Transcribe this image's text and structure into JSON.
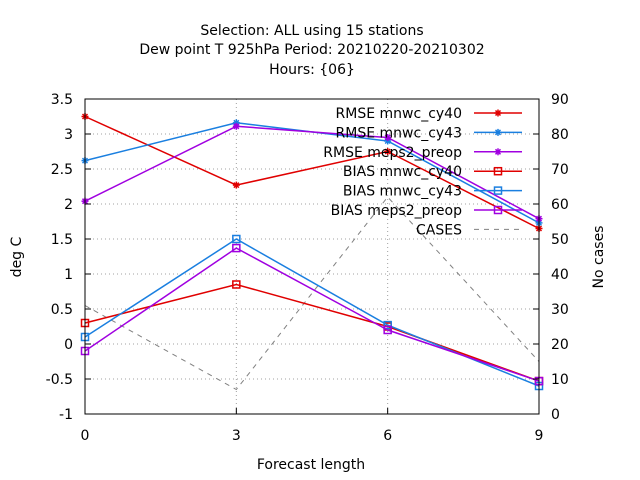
{
  "chart_data": {
    "type": "line",
    "title_lines": [
      "Selection: ALL using    15 stations",
      "Dew point T 925hPa   Period: 20210220-20210302",
      "Hours: {06}"
    ],
    "xlabel": "Forecast length",
    "ylabel": "deg C",
    "y2label": "No cases",
    "x": [
      0,
      3,
      6,
      9
    ],
    "xlim": [
      0,
      9
    ],
    "xticks": [
      "0",
      "3",
      "6",
      "9"
    ],
    "ylim": [
      -1,
      3.5
    ],
    "yticks": [
      "-1",
      "-0.5",
      "0",
      "0.5",
      "1",
      "1.5",
      "2",
      "2.5",
      "3",
      "3.5"
    ],
    "y2lim": [
      0,
      90
    ],
    "y2ticks": [
      "0",
      "10",
      "20",
      "30",
      "40",
      "50",
      "60",
      "70",
      "80",
      "90"
    ],
    "grid": true,
    "legend_position": "top-right",
    "series": [
      {
        "name": "RMSE mnwc_cy40",
        "values": [
          3.25,
          2.27,
          2.75,
          1.65
        ],
        "color": "#e00000",
        "marker": "star",
        "axis": "y1",
        "dash": false
      },
      {
        "name": "RMSE mnwc_cy43",
        "values": [
          2.62,
          3.16,
          2.9,
          1.73
        ],
        "color": "#1a7fe0",
        "marker": "star",
        "axis": "y1",
        "dash": false
      },
      {
        "name": "RMSE meps2_preop",
        "values": [
          2.04,
          3.11,
          2.95,
          1.79
        ],
        "color": "#a000e0",
        "marker": "star",
        "axis": "y1",
        "dash": false
      },
      {
        "name": "BIAS mnwc_cy40",
        "values": [
          0.3,
          0.85,
          0.25,
          -0.53
        ],
        "color": "#e00000",
        "marker": "square",
        "axis": "y1",
        "dash": false
      },
      {
        "name": "BIAS mnwc_cy43",
        "values": [
          0.1,
          1.5,
          0.27,
          -0.6
        ],
        "color": "#1a7fe0",
        "marker": "square",
        "axis": "y1",
        "dash": false
      },
      {
        "name": "BIAS meps2_preop",
        "values": [
          -0.1,
          1.37,
          0.2,
          -0.53
        ],
        "color": "#a000e0",
        "marker": "square",
        "axis": "y1",
        "dash": false
      },
      {
        "name": "CASES",
        "values": [
          31,
          7,
          62,
          15
        ],
        "color": "#808080",
        "marker": "none",
        "axis": "y2",
        "dash": true
      }
    ]
  }
}
